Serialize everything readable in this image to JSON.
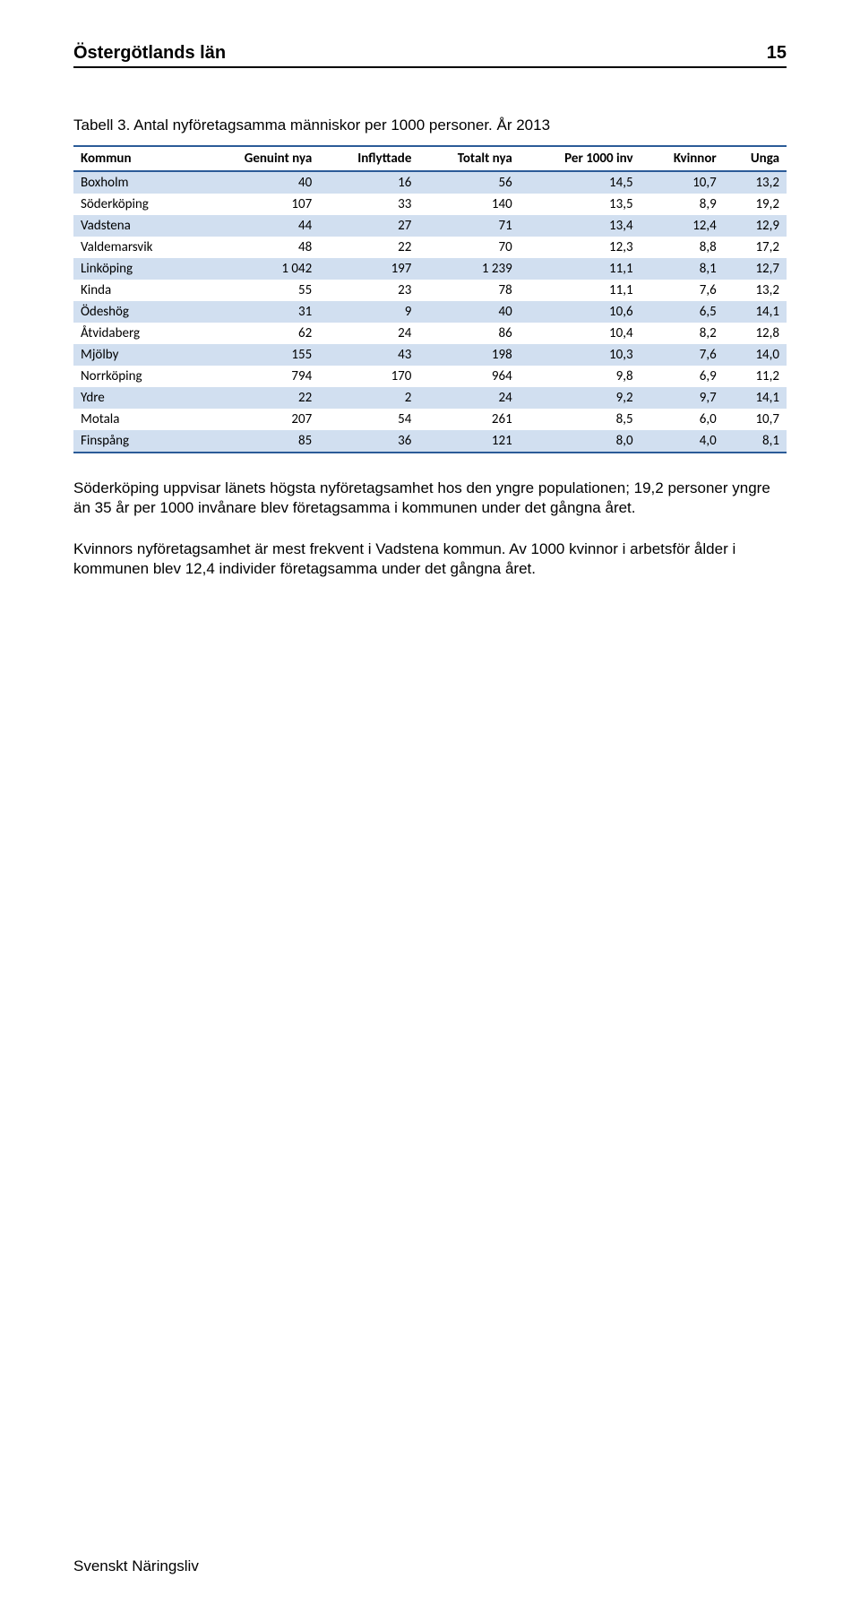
{
  "header": {
    "title": "Östergötlands län",
    "page_number": "15"
  },
  "caption": "Tabell 3. Antal nyföretagsamma människor per 1000 personer. År 2013",
  "table": {
    "header_bg": "#ffffff",
    "header_border": "#2b5b98",
    "row_odd_bg": "#d1dff0",
    "row_even_bg": "#ffffff",
    "columns": [
      {
        "label": "Kommun",
        "align": "left"
      },
      {
        "label": "Genuint nya",
        "align": "right"
      },
      {
        "label": "Inflyttade",
        "align": "right"
      },
      {
        "label": "Totalt nya",
        "align": "right"
      },
      {
        "label": "Per 1000 inv",
        "align": "right"
      },
      {
        "label": "Kvinnor",
        "align": "right"
      },
      {
        "label": "Unga",
        "align": "right"
      }
    ],
    "rows": [
      [
        "Boxholm",
        "40",
        "16",
        "56",
        "14,5",
        "10,7",
        "13,2"
      ],
      [
        "Söderköping",
        "107",
        "33",
        "140",
        "13,5",
        "8,9",
        "19,2"
      ],
      [
        "Vadstena",
        "44",
        "27",
        "71",
        "13,4",
        "12,4",
        "12,9"
      ],
      [
        "Valdemarsvik",
        "48",
        "22",
        "70",
        "12,3",
        "8,8",
        "17,2"
      ],
      [
        "Linköping",
        "1 042",
        "197",
        "1 239",
        "11,1",
        "8,1",
        "12,7"
      ],
      [
        "Kinda",
        "55",
        "23",
        "78",
        "11,1",
        "7,6",
        "13,2"
      ],
      [
        "Ödeshög",
        "31",
        "9",
        "40",
        "10,6",
        "6,5",
        "14,1"
      ],
      [
        "Åtvidaberg",
        "62",
        "24",
        "86",
        "10,4",
        "8,2",
        "12,8"
      ],
      [
        "Mjölby",
        "155",
        "43",
        "198",
        "10,3",
        "7,6",
        "14,0"
      ],
      [
        "Norrköping",
        "794",
        "170",
        "964",
        "9,8",
        "6,9",
        "11,2"
      ],
      [
        "Ydre",
        "22",
        "2",
        "24",
        "9,2",
        "9,7",
        "14,1"
      ],
      [
        "Motala",
        "207",
        "54",
        "261",
        "8,5",
        "6,0",
        "10,7"
      ],
      [
        "Finspång",
        "85",
        "36",
        "121",
        "8,0",
        "4,0",
        "8,1"
      ]
    ]
  },
  "paragraphs": [
    "Söderköping uppvisar länets högsta nyföretagsamhet hos den yngre populationen; 19,2 personer yngre än 35 år per 1000 invånare blev företagsamma i kommunen under det gångna året.",
    "Kvinnors nyföretagsamhet är mest frekvent i Vadstena kommun. Av 1000 kvinnor i arbetsför ålder i kommunen blev 12,4 individer företagsamma under det gångna året."
  ],
  "footer": "Svenskt Näringsliv"
}
